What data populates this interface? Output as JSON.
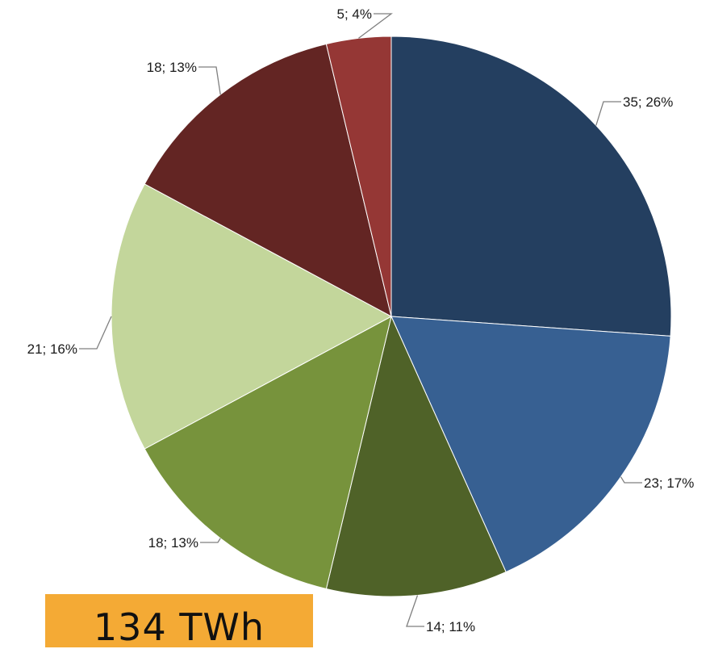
{
  "chart_data": {
    "type": "pie",
    "slices": [
      {
        "value": 35,
        "percent": "26%",
        "label": "35; 26%",
        "color": "#243f60"
      },
      {
        "value": 23,
        "percent": "17%",
        "label": "23; 17%",
        "color": "#376092"
      },
      {
        "value": 14,
        "percent": "11%",
        "label": "14; 11%",
        "color": "#4f6228"
      },
      {
        "value": 18,
        "percent": "13%",
        "label": "18; 13%",
        "color": "#77933c"
      },
      {
        "value": 21,
        "percent": "16%",
        "label": "21; 16%",
        "color": "#c3d69b"
      },
      {
        "value": 18,
        "percent": "13%",
        "label": "18; 13%",
        "color": "#632523"
      },
      {
        "value": 5,
        "percent": "4%",
        "label": "5; 4%",
        "color": "#953735"
      }
    ],
    "start": "12 o'clock",
    "direction": "clockwise"
  },
  "total_label": "134 TWh",
  "total_badge_color": "#f4aa35"
}
